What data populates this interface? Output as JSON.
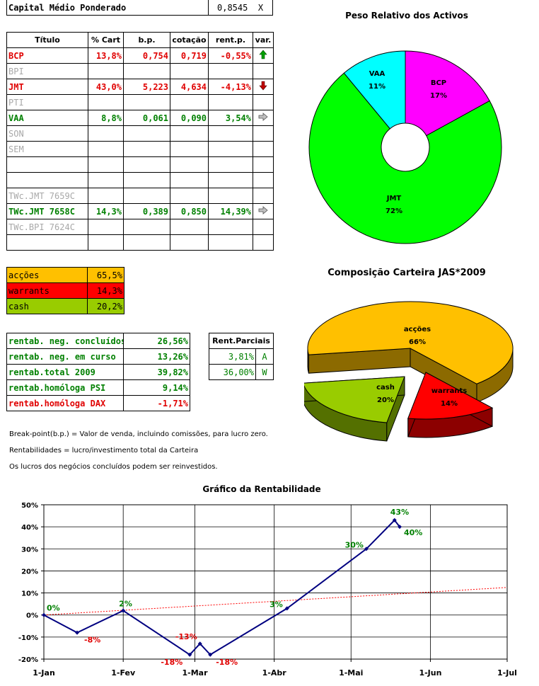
{
  "capital": {
    "label": "Capital Médio Ponderado",
    "value": "0,8545",
    "mark": "X"
  },
  "titles_table": {
    "headers": [
      "Título",
      "% Cart",
      "b.p.",
      "cotação",
      "rent.p.",
      "var."
    ],
    "rows": [
      {
        "name": "BCP",
        "cart": "13,8%",
        "bp": "0,754",
        "cot": "0,719",
        "rent": "-0,55%",
        "var": "up",
        "style": "red"
      },
      {
        "name": "BPI",
        "cart": "",
        "bp": "",
        "cot": "",
        "rent": "",
        "var": "",
        "style": "grey"
      },
      {
        "name": "JMT",
        "cart": "43,0%",
        "bp": "5,223",
        "cot": "4,634",
        "rent": "-4,13%",
        "var": "down",
        "style": "red"
      },
      {
        "name": "PTI",
        "cart": "",
        "bp": "",
        "cot": "",
        "rent": "",
        "var": "",
        "style": "grey"
      },
      {
        "name": "VAA",
        "cart": "8,8%",
        "bp": "0,061",
        "cot": "0,090",
        "rent": "3,54%",
        "var": "right",
        "style": "green"
      },
      {
        "name": "SON",
        "cart": "",
        "bp": "",
        "cot": "",
        "rent": "",
        "var": "",
        "style": "grey"
      },
      {
        "name": "SEM",
        "cart": "",
        "bp": "",
        "cot": "",
        "rent": "",
        "var": "",
        "style": "grey"
      },
      {
        "name": "",
        "cart": "",
        "bp": "",
        "cot": "",
        "rent": "",
        "var": "",
        "style": "grey"
      },
      {
        "name": "",
        "cart": "",
        "bp": "",
        "cot": "",
        "rent": "",
        "var": "",
        "style": "grey"
      },
      {
        "name": "TWc.JMT 7659C",
        "cart": "",
        "bp": "",
        "cot": "",
        "rent": "",
        "var": "",
        "style": "grey"
      },
      {
        "name": "TWc.JMT 7658C",
        "cart": "14,3%",
        "bp": "0,389",
        "cot": "0,850",
        "rent": "14,39%",
        "var": "right",
        "style": "green"
      },
      {
        "name": "TWc.BPI 7624C",
        "cart": "",
        "bp": "",
        "cot": "",
        "rent": "",
        "var": "",
        "style": "grey"
      },
      {
        "name": "",
        "cart": "",
        "bp": "",
        "cot": "",
        "rent": "",
        "var": "",
        "style": "grey"
      }
    ]
  },
  "composition_table": [
    {
      "label": "acções",
      "value": "65,5%",
      "color": "#ffc000"
    },
    {
      "label": "warrants",
      "value": "14,3%",
      "color": "#ff0000"
    },
    {
      "label": "cash",
      "value": "20,2%",
      "color": "#99cc00"
    }
  ],
  "rentab_table": [
    {
      "label": "rentab. neg. concluídos",
      "value": "26,56%",
      "style": "green"
    },
    {
      "label": "rentab. neg. em curso",
      "value": "13,26%",
      "style": "green"
    },
    {
      "label": "rentab.total 2009",
      "value": "39,82%",
      "style": "green"
    },
    {
      "label": "rentab.homóloga PSI",
      "value": "9,14%",
      "style": "green"
    },
    {
      "label": "rentab.homóloga DAX",
      "value": "-1,71%",
      "style": "red"
    }
  ],
  "parciais_table": {
    "header": "Rent.Parciais",
    "rows": [
      {
        "value": "3,81%",
        "code": "A"
      },
      {
        "value": "36,00%",
        "code": "W"
      }
    ]
  },
  "notes": [
    "Break-point(b.p.) = Valor de venda, incluindo comissões, para lucro zero.",
    "Rentabilidades = lucro/investimento total da Carteira",
    "Os lucros dos negócios concluídos podem ser reinvestidos."
  ],
  "chart_data": [
    {
      "type": "pie",
      "title": "Peso Relativo dos Activos",
      "donut": true,
      "slices": [
        {
          "label": "BCP",
          "value": 17,
          "display": "17%",
          "color": "#ff00ff"
        },
        {
          "label": "JMT",
          "value": 72,
          "display": "72%",
          "color": "#00ff00"
        },
        {
          "label": "VAA",
          "value": 11,
          "display": "11%",
          "color": "#00ffff"
        }
      ]
    },
    {
      "type": "pie",
      "title": "Composição Carteira JAS*2009",
      "style": "3d-exploded",
      "slices": [
        {
          "label": "acções",
          "value": 66,
          "display": "66%",
          "color": "#ffc000"
        },
        {
          "label": "warrants",
          "value": 14,
          "display": "14%",
          "color": "#ff0000"
        },
        {
          "label": "cash",
          "value": 20,
          "display": "20%",
          "color": "#99cc00"
        }
      ]
    },
    {
      "type": "line",
      "title": "Gráfico da Rentabilidade",
      "x_ticks": [
        "1-Jan",
        "1-Fev",
        "1-Mar",
        "1-Abr",
        "1-Mai",
        "1-Jun",
        "1-Jul"
      ],
      "x_tick_days": [
        0,
        31,
        59,
        90,
        120,
        151,
        181
      ],
      "y_ticks": [
        "-20%",
        "-10%",
        "0%",
        "10%",
        "20%",
        "30%",
        "40%",
        "50%"
      ],
      "ylim": [
        -20,
        50
      ],
      "grid": true,
      "series": [
        {
          "color": "#000080",
          "points": [
            {
              "day": 0,
              "value": 0,
              "label": "0%",
              "label_color": "#008000"
            },
            {
              "day": 13,
              "value": -8,
              "label": "-8%",
              "label_color": "#e00000"
            },
            {
              "day": 31,
              "value": 2,
              "label": "2%",
              "label_color": "#008000"
            },
            {
              "day": 57,
              "value": -18,
              "label": "-18%",
              "label_color": "#e00000"
            },
            {
              "day": 61,
              "value": -13,
              "label": "-13%",
              "label_color": "#e00000"
            },
            {
              "day": 65,
              "value": -18,
              "label": "-18%",
              "label_color": "#e00000"
            },
            {
              "day": 95,
              "value": 3,
              "label": "3%",
              "label_color": "#008000"
            },
            {
              "day": 126,
              "value": 30,
              "label": "30%",
              "label_color": "#008000"
            },
            {
              "day": 137,
              "value": 43,
              "label": "43%",
              "label_color": "#008000"
            },
            {
              "day": 139,
              "value": 40,
              "label": "40%",
              "label_color": "#008000"
            }
          ]
        }
      ],
      "trendline": {
        "color": "#ff0000",
        "style": "dashed",
        "start_value": 0,
        "end_value": 12.5
      }
    }
  ]
}
